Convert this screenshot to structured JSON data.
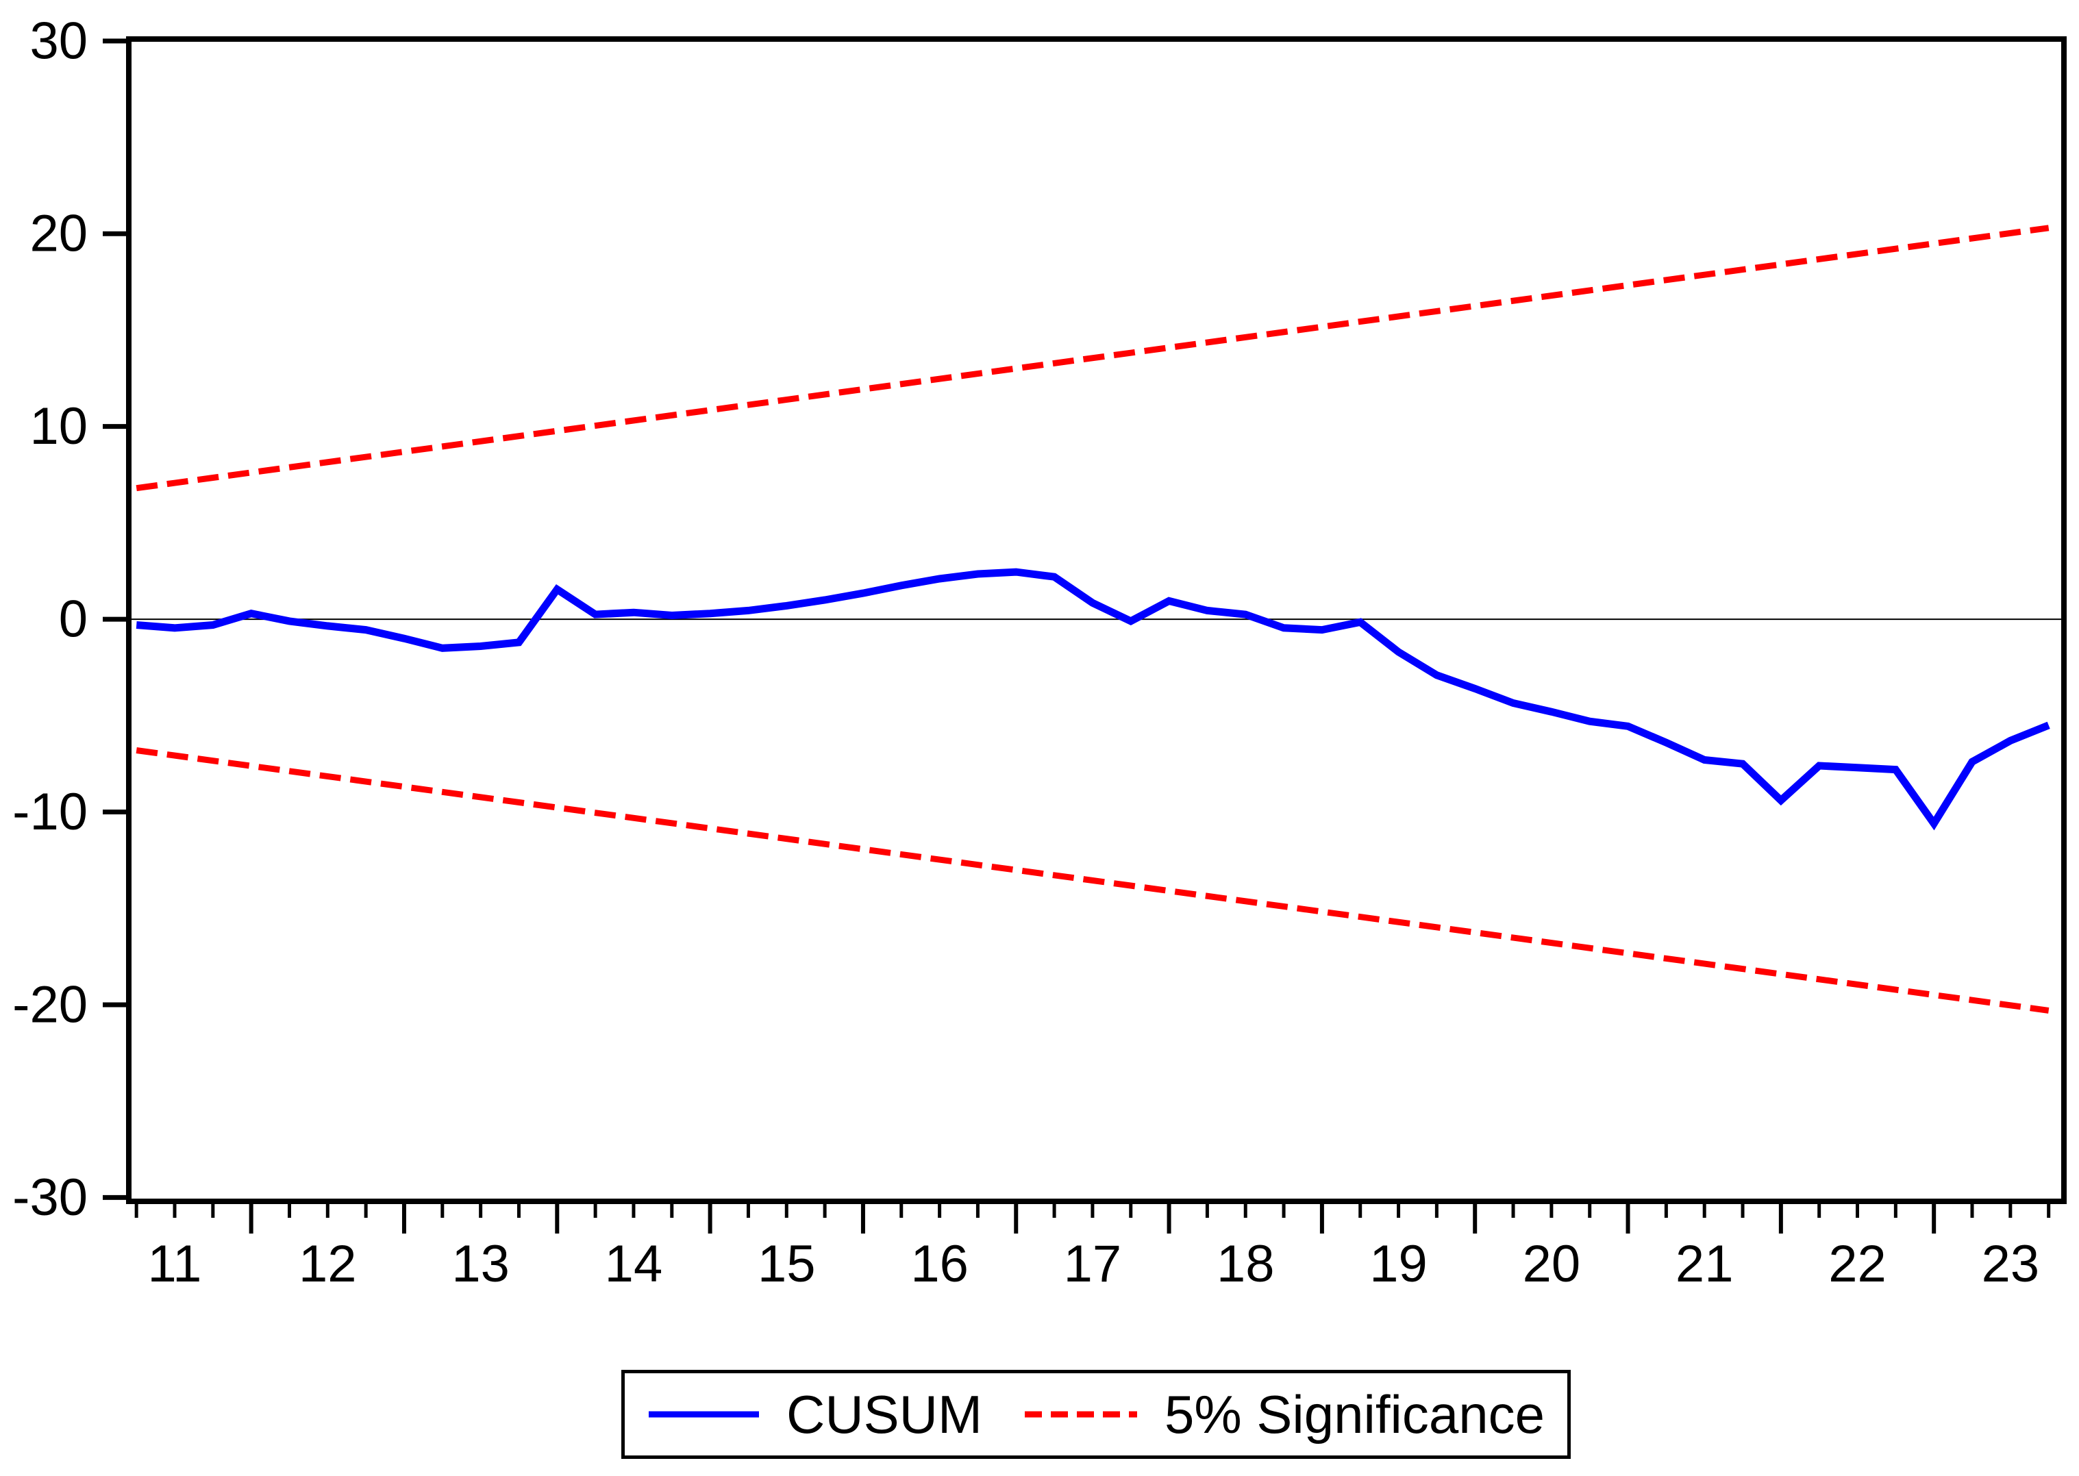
{
  "colors": {
    "cusum": "#0000fe",
    "significance": "#ff0000",
    "axis": "#000000",
    "zero_line": "#000000",
    "background": "#ffffff",
    "text": "#000000"
  },
  "chart_data": {
    "type": "line",
    "title": "",
    "xlabel": "",
    "ylabel": "",
    "xlim": [
      10.7,
      23.35
    ],
    "ylim": [
      -30.2,
      30.1
    ],
    "grid": false,
    "zero_line": true,
    "y_ticks": [
      30,
      20,
      10,
      0,
      -10,
      -20,
      -30
    ],
    "y_tick_labels": [
      "30",
      "20",
      "10",
      "0",
      "-10",
      "-20",
      "-30"
    ],
    "x_labels": [
      "11",
      "12",
      "13",
      "14",
      "15",
      "16",
      "17",
      "18",
      "19",
      "20",
      "21",
      "22",
      "23"
    ],
    "x_label_positions": [
      11,
      12,
      13,
      14,
      15,
      16,
      17,
      18,
      19,
      20,
      21,
      22,
      23
    ],
    "x_major_ticks": [
      11.5,
      12.5,
      13.5,
      14.5,
      15.5,
      16.5,
      17.5,
      18.5,
      19.5,
      20.5,
      21.5,
      22.5
    ],
    "x_minor_tick_step": 0.25,
    "x": [
      10.75,
      11.0,
      11.25,
      11.5,
      11.75,
      12.0,
      12.25,
      12.5,
      12.75,
      13.0,
      13.25,
      13.5,
      13.75,
      14.0,
      14.25,
      14.5,
      14.75,
      15.0,
      15.25,
      15.5,
      15.75,
      16.0,
      16.25,
      16.5,
      16.75,
      17.0,
      17.25,
      17.5,
      17.75,
      18.0,
      18.25,
      18.5,
      18.75,
      19.0,
      19.25,
      19.5,
      19.75,
      20.0,
      20.25,
      20.5,
      20.75,
      21.0,
      21.25,
      21.5,
      21.75,
      22.0,
      22.25,
      22.5,
      22.75,
      23.0,
      23.25
    ],
    "series": [
      {
        "name": "CUSUM",
        "style": "solid",
        "color_ref": "cusum",
        "values": [
          -0.3,
          -0.45,
          -0.3,
          0.3,
          -0.1,
          -0.35,
          -0.55,
          -1.0,
          -1.5,
          -1.4,
          -1.2,
          1.55,
          0.25,
          0.35,
          0.2,
          0.3,
          0.45,
          0.7,
          1.0,
          1.35,
          1.75,
          2.1,
          2.35,
          2.45,
          2.2,
          0.85,
          -0.1,
          0.95,
          0.45,
          0.25,
          -0.45,
          -0.55,
          -0.15,
          -1.7,
          -2.9,
          -3.6,
          -4.35,
          -4.8,
          -5.3,
          -5.55,
          -6.4,
          -7.3,
          -7.5,
          -9.4,
          -7.6,
          -7.7,
          -7.8,
          -10.6,
          -7.4,
          -6.3,
          -5.5
        ]
      },
      {
        "name": "5% Significance (upper)",
        "style": "dashed",
        "color_ref": "significance",
        "x": [
          10.75,
          23.25
        ],
        "values": [
          6.8,
          20.3
        ]
      },
      {
        "name": "5% Significance (lower)",
        "style": "dashed",
        "color_ref": "significance",
        "x": [
          10.75,
          23.25
        ],
        "values": [
          -6.8,
          -20.3
        ]
      }
    ],
    "legend": {
      "position": "bottom-center",
      "items": [
        {
          "label": "CUSUM",
          "style": "solid",
          "color_ref": "cusum"
        },
        {
          "label": "5% Significance",
          "style": "dashed",
          "color_ref": "significance"
        }
      ]
    }
  }
}
